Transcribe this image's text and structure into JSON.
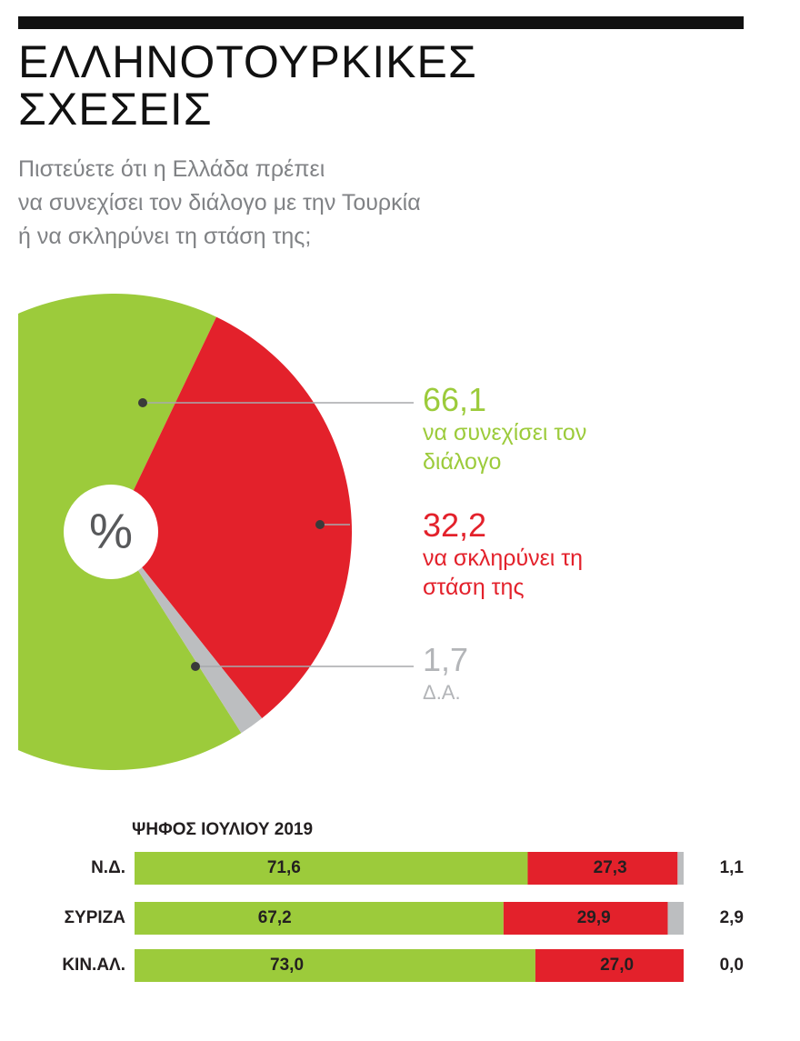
{
  "chart_data": [
    {
      "type": "pie",
      "title": [
        "ΕΛΛΗΝΟΤΟΥΡΚΙΚΕΣ",
        "ΣΧΕΣΕΙΣ"
      ],
      "subtitle": [
        "Πιστεύετε ότι η Ελλάδα πρέπει",
        "να συνεχίσει τον διάλογο με την Τουρκία",
        "ή να σκληρύνει τη στάση της;"
      ],
      "center_label": "%",
      "categories": [
        "να συνεχίσει τον διάλογο",
        "να σκληρύνει τη στάση της",
        "Δ.Α."
      ],
      "values": [
        66.1,
        32.2,
        1.7
      ],
      "value_labels": [
        "66,1",
        "32,2",
        "1,7"
      ],
      "colors": [
        "#9ccb3b",
        "#e3212b",
        "#bcbec0"
      ]
    },
    {
      "type": "stacked_bar",
      "title": "ΨΗΦΟΣ ΙΟΥΛΙΟΥ 2019",
      "categories": [
        "Ν.Δ.",
        "ΣΥΡΙΖΑ",
        "ΚΙΝ.ΑΛ."
      ],
      "xlim": [
        0,
        100
      ],
      "series": [
        {
          "color": "#9ccb3b",
          "values": [
            71.6,
            67.2,
            73.0
          ],
          "value_labels": [
            "71,6",
            "67,2",
            "73,0"
          ]
        },
        {
          "color": "#e3212b",
          "values": [
            27.3,
            29.9,
            27.0
          ],
          "value_labels": [
            "27,3",
            "29,9",
            "27,0"
          ]
        },
        {
          "color": "#bcbec0",
          "values": [
            1.1,
            2.9,
            0.0
          ],
          "value_labels": [
            "1,1",
            "2,9",
            "0,0"
          ]
        }
      ]
    }
  ]
}
